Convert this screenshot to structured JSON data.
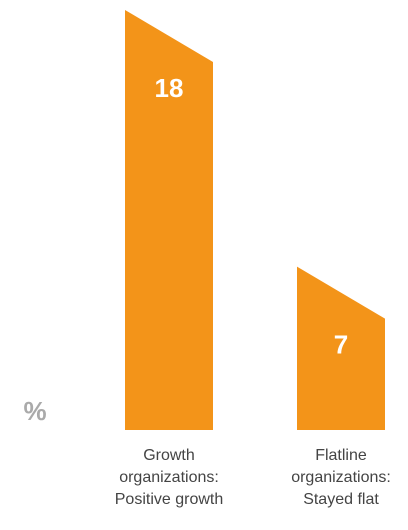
{
  "chart_data": {
    "type": "bar",
    "categories": [
      [
        "Growth",
        "organizations:",
        "Positive growth"
      ],
      [
        "Flatline",
        "organizations:",
        "Stayed flat"
      ]
    ],
    "values": [
      18,
      7
    ],
    "color": "#f39419",
    "unit_label": "%"
  }
}
